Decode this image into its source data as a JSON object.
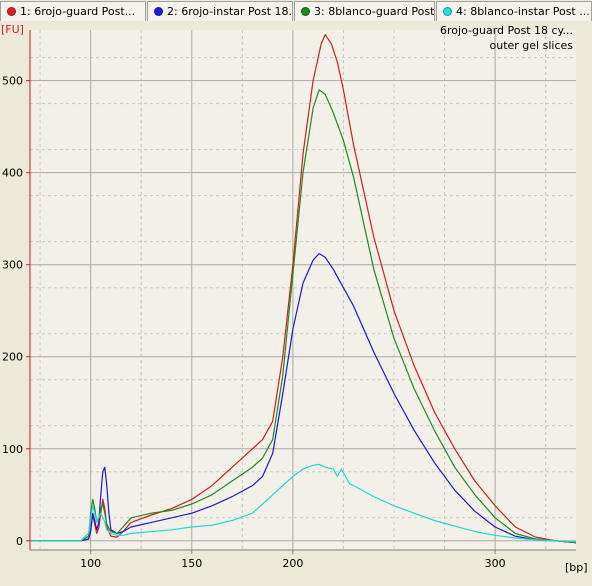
{
  "tabs": [
    {
      "label": "1: 6rojo-guard Post...",
      "color": "#e02020",
      "active": true
    },
    {
      "label": "2: 6rojo-instar Post 18...",
      "color": "#1a1ae0",
      "active": false
    },
    {
      "label": "3: 8blanco-guard Post...",
      "color": "#1a8a1a",
      "active": false
    },
    {
      "label": "4: 8blanco-instar Post ...",
      "color": "#20e0e0",
      "active": false
    }
  ],
  "legend": {
    "sample": "6rojo-guard Post 18 cy...",
    "note": "outer gel slices"
  },
  "chart_data": {
    "type": "line",
    "ylabel": "[FU]",
    "xlabel": "[bp]",
    "xlim": [
      70,
      340
    ],
    "ylim": [
      -10,
      555
    ],
    "yticks": [
      0,
      100,
      200,
      300,
      400,
      500
    ],
    "xticks": [
      100,
      150,
      200,
      300
    ],
    "grid": true,
    "series": [
      {
        "color": "#cc1f1f",
        "points": [
          [
            70,
            0
          ],
          [
            95,
            0
          ],
          [
            99,
            2
          ],
          [
            100,
            12
          ],
          [
            101,
            28
          ],
          [
            102,
            18
          ],
          [
            103,
            8
          ],
          [
            104,
            14
          ],
          [
            105,
            30
          ],
          [
            106,
            45
          ],
          [
            107,
            35
          ],
          [
            108,
            15
          ],
          [
            110,
            5
          ],
          [
            113,
            4
          ],
          [
            116,
            10
          ],
          [
            120,
            20
          ],
          [
            130,
            28
          ],
          [
            140,
            35
          ],
          [
            150,
            45
          ],
          [
            160,
            60
          ],
          [
            170,
            80
          ],
          [
            180,
            100
          ],
          [
            185,
            110
          ],
          [
            190,
            130
          ],
          [
            195,
            200
          ],
          [
            200,
            300
          ],
          [
            205,
            420
          ],
          [
            210,
            500
          ],
          [
            214,
            540
          ],
          [
            216,
            550
          ],
          [
            219,
            540
          ],
          [
            222,
            520
          ],
          [
            225,
            490
          ],
          [
            230,
            430
          ],
          [
            240,
            330
          ],
          [
            250,
            250
          ],
          [
            260,
            190
          ],
          [
            270,
            140
          ],
          [
            280,
            100
          ],
          [
            290,
            65
          ],
          [
            300,
            38
          ],
          [
            310,
            15
          ],
          [
            320,
            4
          ],
          [
            330,
            0
          ],
          [
            340,
            -2
          ]
        ]
      },
      {
        "color": "#1a1ad0",
        "points": [
          [
            70,
            0
          ],
          [
            95,
            0
          ],
          [
            99,
            2
          ],
          [
            100,
            10
          ],
          [
            101,
            30
          ],
          [
            102,
            22
          ],
          [
            103,
            12
          ],
          [
            104,
            20
          ],
          [
            105,
            50
          ],
          [
            106,
            75
          ],
          [
            107,
            80
          ],
          [
            108,
            60
          ],
          [
            109,
            30
          ],
          [
            110,
            12
          ],
          [
            113,
            8
          ],
          [
            116,
            10
          ],
          [
            120,
            15
          ],
          [
            130,
            20
          ],
          [
            140,
            25
          ],
          [
            150,
            30
          ],
          [
            160,
            38
          ],
          [
            170,
            48
          ],
          [
            180,
            60
          ],
          [
            185,
            70
          ],
          [
            190,
            95
          ],
          [
            195,
            160
          ],
          [
            200,
            230
          ],
          [
            205,
            280
          ],
          [
            210,
            305
          ],
          [
            213,
            312
          ],
          [
            216,
            308
          ],
          [
            220,
            295
          ],
          [
            225,
            275
          ],
          [
            230,
            255
          ],
          [
            240,
            205
          ],
          [
            250,
            160
          ],
          [
            260,
            120
          ],
          [
            270,
            85
          ],
          [
            280,
            55
          ],
          [
            290,
            32
          ],
          [
            300,
            15
          ],
          [
            310,
            5
          ],
          [
            320,
            1
          ],
          [
            330,
            0
          ],
          [
            340,
            -2
          ]
        ]
      },
      {
        "color": "#1f8a1f",
        "points": [
          [
            70,
            0
          ],
          [
            95,
            0
          ],
          [
            99,
            5
          ],
          [
            100,
            30
          ],
          [
            101,
            45
          ],
          [
            102,
            35
          ],
          [
            103,
            20
          ],
          [
            104,
            25
          ],
          [
            105,
            35
          ],
          [
            106,
            40
          ],
          [
            107,
            30
          ],
          [
            108,
            18
          ],
          [
            110,
            10
          ],
          [
            113,
            8
          ],
          [
            116,
            15
          ],
          [
            120,
            25
          ],
          [
            130,
            30
          ],
          [
            140,
            33
          ],
          [
            150,
            40
          ],
          [
            160,
            50
          ],
          [
            170,
            65
          ],
          [
            180,
            80
          ],
          [
            185,
            90
          ],
          [
            190,
            110
          ],
          [
            195,
            180
          ],
          [
            200,
            290
          ],
          [
            205,
            400
          ],
          [
            210,
            470
          ],
          [
            213,
            490
          ],
          [
            216,
            485
          ],
          [
            220,
            465
          ],
          [
            225,
            435
          ],
          [
            230,
            395
          ],
          [
            240,
            295
          ],
          [
            250,
            220
          ],
          [
            260,
            165
          ],
          [
            270,
            120
          ],
          [
            280,
            80
          ],
          [
            290,
            50
          ],
          [
            300,
            25
          ],
          [
            310,
            8
          ],
          [
            320,
            2
          ],
          [
            330,
            0
          ],
          [
            340,
            -2
          ]
        ]
      },
      {
        "color": "#22d8d8",
        "points": [
          [
            70,
            0
          ],
          [
            95,
            0
          ],
          [
            99,
            8
          ],
          [
            100,
            25
          ],
          [
            101,
            38
          ],
          [
            102,
            30
          ],
          [
            103,
            20
          ],
          [
            104,
            25
          ],
          [
            105,
            30
          ],
          [
            106,
            25
          ],
          [
            107,
            20
          ],
          [
            108,
            12
          ],
          [
            110,
            8
          ],
          [
            113,
            6
          ],
          [
            116,
            6
          ],
          [
            120,
            8
          ],
          [
            130,
            10
          ],
          [
            140,
            12
          ],
          [
            150,
            15
          ],
          [
            160,
            17
          ],
          [
            170,
            22
          ],
          [
            180,
            30
          ],
          [
            185,
            40
          ],
          [
            190,
            50
          ],
          [
            195,
            60
          ],
          [
            200,
            70
          ],
          [
            205,
            78
          ],
          [
            210,
            82
          ],
          [
            213,
            83
          ],
          [
            216,
            80
          ],
          [
            220,
            78
          ],
          [
            222,
            70
          ],
          [
            224,
            78
          ],
          [
            226,
            70
          ],
          [
            228,
            62
          ],
          [
            230,
            60
          ],
          [
            240,
            48
          ],
          [
            250,
            38
          ],
          [
            260,
            30
          ],
          [
            270,
            22
          ],
          [
            280,
            16
          ],
          [
            290,
            10
          ],
          [
            300,
            6
          ],
          [
            310,
            3
          ],
          [
            320,
            1
          ],
          [
            330,
            0
          ],
          [
            340,
            -1
          ]
        ]
      }
    ]
  }
}
